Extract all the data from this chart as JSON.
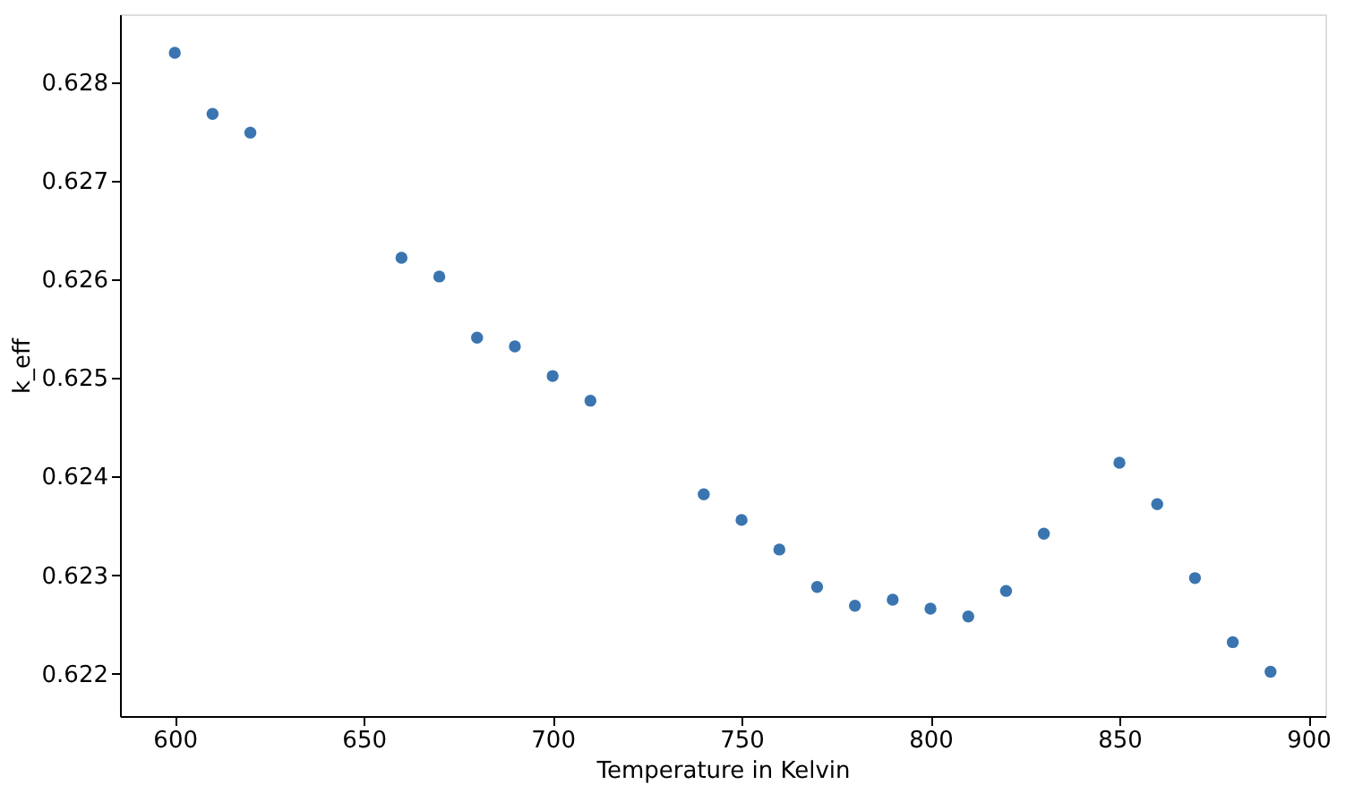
{
  "chart_data": {
    "type": "scatter",
    "xlabel": "Temperature in Kelvin",
    "ylabel": "k_eff",
    "x": [
      600,
      610,
      620,
      660,
      670,
      680,
      690,
      700,
      710,
      740,
      750,
      760,
      770,
      780,
      790,
      800,
      810,
      820,
      830,
      850,
      860,
      870,
      880,
      890
    ],
    "series": [
      {
        "color": "#3a75b0",
        "values": [
          0.6283,
          0.62768,
          0.62749,
          0.62622,
          0.62603,
          0.62541,
          0.62532,
          0.62502,
          0.62477,
          0.62382,
          0.62356,
          0.62326,
          0.62288,
          0.62269,
          0.62275,
          0.62266,
          0.62258,
          0.62284,
          0.62342,
          0.62414,
          0.62372,
          0.62297,
          0.62232,
          0.62202
        ],
        "errors": [
          5e-05,
          5e-05,
          5e-05,
          5e-05,
          5e-05,
          5e-05,
          5e-05,
          5e-05,
          5e-05,
          5e-05,
          5e-05,
          5e-05,
          5e-05,
          5e-05,
          5e-05,
          5e-05,
          5e-05,
          5e-05,
          5e-05,
          5e-05,
          5e-05,
          5e-05,
          5e-05,
          5e-05
        ]
      }
    ],
    "xlim": [
      585.5,
      904.5
    ],
    "xticks": [
      600,
      650,
      700,
      750,
      800,
      850,
      900
    ],
    "ylim": [
      0.62157,
      0.62869
    ],
    "yticks": [
      {
        "value": 0.622,
        "label": "0.622"
      },
      {
        "value": 0.623,
        "label": "0.623"
      },
      {
        "value": 0.624,
        "label": "0.624"
      },
      {
        "value": 0.625,
        "label": "0.625"
      },
      {
        "value": 0.626,
        "label": "0.626"
      },
      {
        "value": 0.627,
        "label": "0.627"
      },
      {
        "value": 0.628,
        "label": "0.628"
      }
    ],
    "grid": false,
    "marker": "circle"
  }
}
